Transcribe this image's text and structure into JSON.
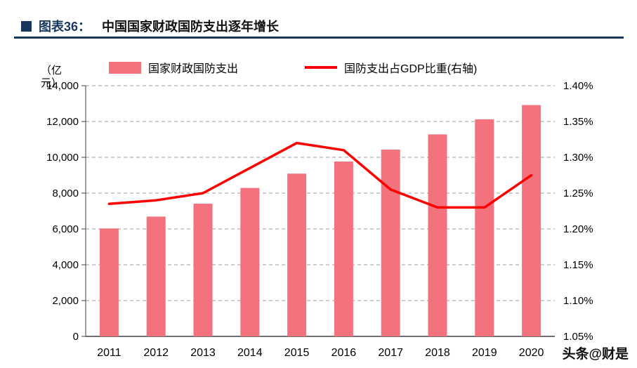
{
  "header": {
    "title_prefix": "图表36：",
    "title": "中国国家财政国防支出逐年增长"
  },
  "legend": {
    "bar_label": "国家财政国防支出",
    "line_label": "国防支出占GDP比重(右轴)"
  },
  "watermark": "头条@财是",
  "chart_data": {
    "type": "bar",
    "subtype": "bar+line combo",
    "title": "中国国家财政国防支出逐年增长",
    "unit_label": "（亿元）",
    "categories": [
      "2011",
      "2012",
      "2013",
      "2014",
      "2015",
      "2016",
      "2017",
      "2018",
      "2019",
      "2020"
    ],
    "series": [
      {
        "name": "国家财政国防支出",
        "type": "bar",
        "axis": "left",
        "values": [
          6028,
          6691,
          7411,
          8290,
          9088,
          9766,
          10432,
          11280,
          12122,
          12918
        ]
      },
      {
        "name": "国防支出占GDP比重(右轴)",
        "type": "line",
        "axis": "right",
        "values": [
          1.235,
          1.24,
          1.25,
          1.285,
          1.32,
          1.31,
          1.255,
          1.23,
          1.23,
          1.275
        ]
      }
    ],
    "left_axis": {
      "min": 0,
      "max": 14000,
      "step": 2000,
      "tick_labels": [
        "14,000",
        "12,000",
        "10,000",
        "8,000",
        "6,000",
        "4,000",
        "2,000",
        "0"
      ]
    },
    "right_axis": {
      "min": 1.05,
      "max": 1.4,
      "step": 0.05,
      "tick_labels": [
        "1.40%",
        "1.35%",
        "1.30%",
        "1.25%",
        "1.20%",
        "1.15%",
        "1.10%",
        "1.05%"
      ]
    },
    "colors": {
      "bar": "#F4727D",
      "line": "#FF0000",
      "grid": "#9E9E9E",
      "axis": "#404040"
    },
    "grid": "dashed horizontal",
    "legend_position": "top"
  }
}
